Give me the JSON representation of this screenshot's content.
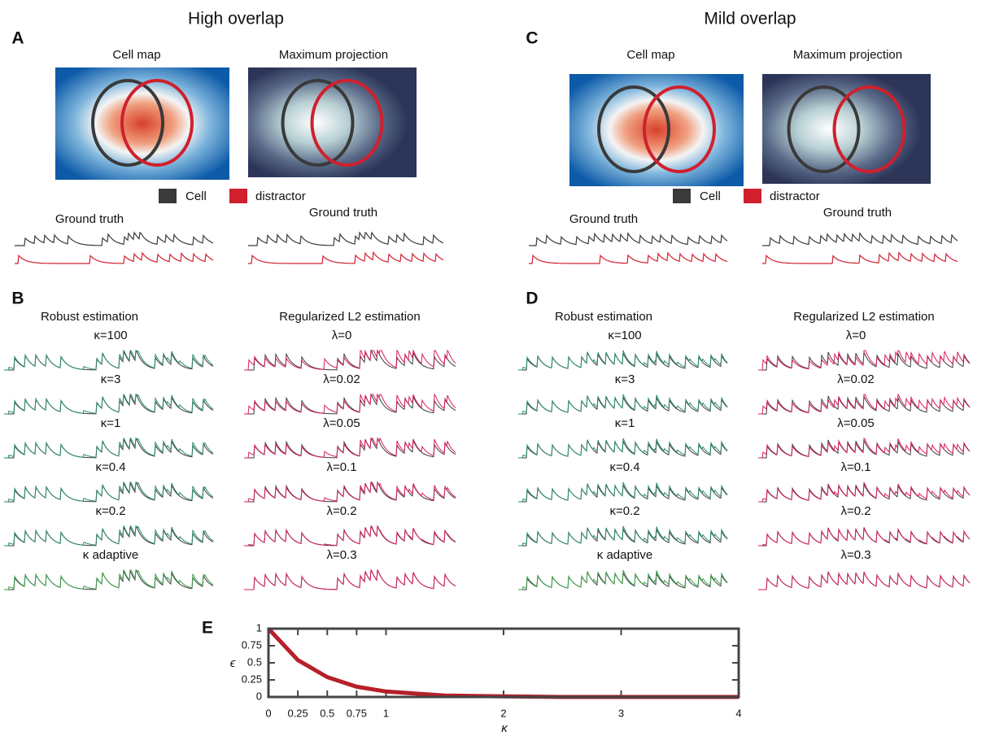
{
  "panels": [
    {
      "heading": "High overlap",
      "letter_top": "A",
      "letter_bottom": "B",
      "images": [
        "Cell map",
        "Maximum projection"
      ],
      "legend": [
        "Cell",
        "distractor"
      ],
      "ground_truth": [
        "Ground truth",
        "Ground truth"
      ],
      "robust": {
        "title": "Robust estimation",
        "labels": [
          "κ=100",
          "κ=3",
          "κ=1",
          "κ=0.4",
          "κ=0.2",
          "κ adaptive"
        ]
      },
      "l2": {
        "title": "Regularized L2 estimation",
        "labels": [
          "λ=0",
          "λ=0.02",
          "λ=0.05",
          "λ=0.1",
          "λ=0.2",
          "λ=0.3"
        ]
      }
    },
    {
      "heading": "Mild overlap",
      "letter_top": "C",
      "letter_bottom": "D",
      "images": [
        "Cell map",
        "Maximum projection"
      ],
      "legend": [
        "Cell",
        "distractor"
      ],
      "ground_truth": [
        "Ground truth",
        "Ground truth"
      ],
      "robust": {
        "title": "Robust estimation",
        "labels": [
          "κ=100",
          "κ=3",
          "κ=1",
          "κ=0.4",
          "κ=0.2",
          "κ adaptive"
        ]
      },
      "l2": {
        "title": "Regularized L2 estimation",
        "labels": [
          "λ=0",
          "λ=0.02",
          "λ=0.05",
          "λ=0.1",
          "λ=0.2",
          "λ=0.3"
        ]
      }
    }
  ],
  "chart_data": {
    "type": "line",
    "panel_label": "E",
    "x_label": "κ",
    "y_label": "ϵ",
    "x": [
      0,
      0.25,
      0.5,
      0.75,
      1,
      1.5,
      2,
      2.5,
      3,
      3.5,
      4
    ],
    "series": [
      {
        "name": "ϵ",
        "color": "#b5202a",
        "values": [
          1,
          0.54,
          0.29,
          0.15,
          0.08,
          0.02,
          0.01,
          0,
          0,
          0,
          0
        ]
      }
    ],
    "xlim": [
      0,
      4
    ],
    "xticks": [
      0,
      0.25,
      0.5,
      0.75,
      1,
      2,
      3,
      4
    ],
    "ylim": [
      0,
      1
    ],
    "yticks": [
      0,
      0.25,
      0.5,
      0.75,
      1
    ]
  }
}
